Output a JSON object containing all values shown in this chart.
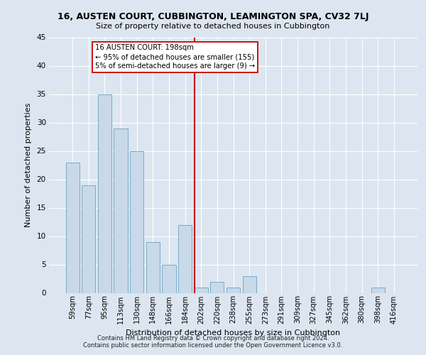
{
  "title": "16, AUSTEN COURT, CUBBINGTON, LEAMINGTON SPA, CV32 7LJ",
  "subtitle": "Size of property relative to detached houses in Cubbington",
  "xlabel": "Distribution of detached houses by size in Cubbington",
  "ylabel": "Number of detached properties",
  "categories": [
    "59sqm",
    "77sqm",
    "95sqm",
    "113sqm",
    "130sqm",
    "148sqm",
    "166sqm",
    "184sqm",
    "202sqm",
    "220sqm",
    "238sqm",
    "255sqm",
    "273sqm",
    "291sqm",
    "309sqm",
    "327sqm",
    "345sqm",
    "362sqm",
    "380sqm",
    "398sqm",
    "416sqm"
  ],
  "values": [
    23,
    19,
    35,
    29,
    25,
    9,
    5,
    12,
    1,
    2,
    1,
    3,
    0,
    0,
    0,
    0,
    0,
    0,
    0,
    1,
    0
  ],
  "bar_color": "#c8d9ea",
  "bar_edge_color": "#7aaac8",
  "bar_edge_width": 0.7,
  "ref_line_index": 7.57,
  "annotation_line1": "16 AUSTEN COURT: 198sqm",
  "annotation_line2": "← 95% of detached houses are smaller (155)",
  "annotation_line3": "5% of semi-detached houses are larger (9) →",
  "annotation_box_color": "#ffffff",
  "annotation_box_edge": "#cc0000",
  "ref_line_color": "#cc0000",
  "bg_color": "#dde6f0",
  "plot_bg_color": "#dde6f0",
  "grid_color": "#ffffff",
  "ylim": [
    0,
    45
  ],
  "yticks": [
    0,
    5,
    10,
    15,
    20,
    25,
    30,
    35,
    40,
    45
  ],
  "footer1": "Contains HM Land Registry data © Crown copyright and database right 2024.",
  "footer2": "Contains public sector information licensed under the Open Government Licence v3.0."
}
